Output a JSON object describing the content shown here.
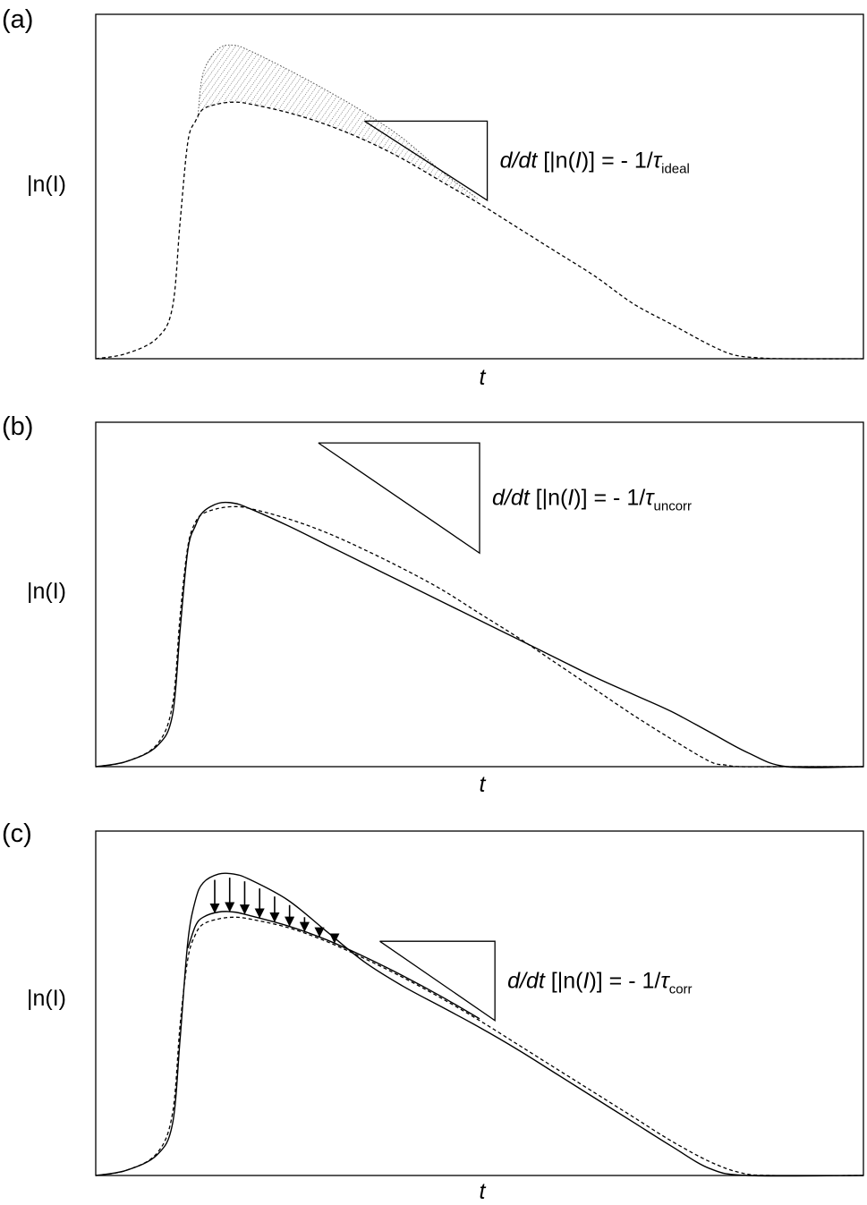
{
  "chart_data": [
    {
      "type": "line",
      "panel_label": "(a)",
      "xlabel": "t",
      "ylabel": "|n(I)",
      "xlim": [
        0,
        100
      ],
      "ylim": [
        0,
        100
      ],
      "axis_ticks": false,
      "annotation": {
        "text": "d/dt [|n(I)] = - 1/τ",
        "subscript": "ideal",
        "slope_triangle": {
          "x": [
            35,
            51
          ],
          "y": [
            69,
            46
          ]
        }
      },
      "shaded_region": {
        "between": [
          "upper-curve",
          "dashed-curve"
        ],
        "pattern": "dotted-hatch"
      },
      "series": [
        {
          "style": "dashed",
          "x": [
            0,
            4,
            8,
            10,
            11,
            12,
            13,
            14,
            16,
            18,
            20,
            25,
            30,
            35,
            40,
            45,
            50,
            55,
            60,
            65,
            70,
            75,
            80,
            83,
            86,
            90,
            100
          ],
          "y": [
            0,
            1.5,
            6,
            15,
            40,
            63,
            69,
            72.5,
            74,
            74.5,
            74,
            71.5,
            68,
            63.5,
            58,
            51.5,
            45,
            38,
            31,
            24,
            16,
            10,
            4,
            1.2,
            0.3,
            0,
            0
          ]
        },
        {
          "style": "hatched-edge",
          "x": [
            13.3,
            14,
            16,
            18,
            20,
            25,
            30,
            35,
            40,
            45,
            49.7
          ],
          "y": [
            70,
            83,
            90,
            91,
            89.5,
            84,
            78,
            71.5,
            64,
            54.5,
            46.5
          ]
        }
      ]
    },
    {
      "type": "line",
      "panel_label": "(b)",
      "xlabel": "t",
      "ylabel": "|n(I)",
      "xlim": [
        0,
        100
      ],
      "ylim": [
        0,
        100
      ],
      "axis_ticks": false,
      "annotation": {
        "text": "d/dt [|n(I)] = - 1/τ",
        "subscript": "uncorr",
        "slope_triangle": {
          "x": [
            29,
            50
          ],
          "y": [
            94,
            62
          ]
        }
      },
      "series": [
        {
          "style": "solid",
          "x": [
            0,
            4,
            8,
            10,
            11,
            12,
            13,
            14,
            16,
            18,
            20,
            25,
            30,
            35,
            40,
            45,
            50,
            55,
            60,
            65,
            70,
            75,
            80,
            85,
            90,
            100
          ],
          "y": [
            0,
            1.5,
            6,
            15,
            40,
            63,
            70,
            74,
            76.5,
            76.5,
            75,
            70,
            64.5,
            59,
            53.5,
            48,
            42.5,
            37,
            31.5,
            26,
            21,
            16,
            10,
            4,
            0,
            0
          ]
        },
        {
          "style": "dashed",
          "x": [
            0,
            4,
            8,
            10,
            11,
            12,
            13,
            14,
            16,
            18,
            20,
            25,
            30,
            35,
            40,
            45,
            50,
            55,
            60,
            65,
            70,
            75,
            80,
            82,
            84,
            90,
            100
          ],
          "y": [
            0,
            1.5,
            6.5,
            18,
            44,
            64,
            71,
            73.5,
            75,
            75.5,
            75,
            72,
            68,
            63,
            57.5,
            51.5,
            44.5,
            37.5,
            30,
            22.5,
            15,
            8,
            1.5,
            0.5,
            0,
            0,
            0
          ]
        }
      ]
    },
    {
      "type": "line",
      "panel_label": "(c)",
      "xlabel": "t",
      "ylabel": "|n(I)",
      "xlim": [
        0,
        100
      ],
      "ylim": [
        0,
        100
      ],
      "axis_ticks": false,
      "annotation": {
        "text": "d/dt [|n(I)] = - 1/τ",
        "subscript": "corr",
        "slope_triangle": {
          "x": [
            37,
            52
          ],
          "y": [
            68,
            45
          ]
        },
        "arrows_count": 9
      },
      "series": [
        {
          "style": "solid",
          "x": [
            0,
            4,
            8,
            10,
            11,
            12,
            13,
            14,
            16,
            18,
            20,
            25,
            30,
            35,
            40,
            45,
            50,
            55,
            60,
            65,
            70,
            75,
            80,
            85,
            100
          ],
          "y": [
            0,
            1.5,
            6,
            15,
            40,
            68,
            80,
            85,
            87.5,
            87.5,
            86,
            80,
            71,
            62,
            55,
            49,
            43,
            36.5,
            29.5,
            22.5,
            15.5,
            8.5,
            2,
            0,
            0
          ]
        },
        {
          "style": "solid",
          "x": [
            12,
            13,
            14,
            16,
            18,
            20,
            25,
            30,
            35,
            40,
            45,
            50
          ],
          "y": [
            66,
            72.5,
            75,
            76.5,
            76.5,
            75.5,
            72.5,
            68.5,
            63.5,
            58,
            52,
            45.5
          ]
        },
        {
          "style": "dashed",
          "x": [
            0,
            4,
            8,
            10,
            11,
            12,
            13,
            14,
            16,
            18,
            20,
            25,
            30,
            35,
            40,
            45,
            50,
            55,
            60,
            65,
            70,
            75,
            80,
            84,
            88,
            100
          ],
          "y": [
            0,
            1.5,
            6.5,
            18,
            44,
            63,
            70,
            73,
            74.5,
            75,
            74.5,
            72,
            68,
            63,
            57.5,
            51.5,
            45,
            38,
            31,
            24,
            17,
            10,
            4,
            0.8,
            0,
            0
          ]
        }
      ]
    }
  ]
}
